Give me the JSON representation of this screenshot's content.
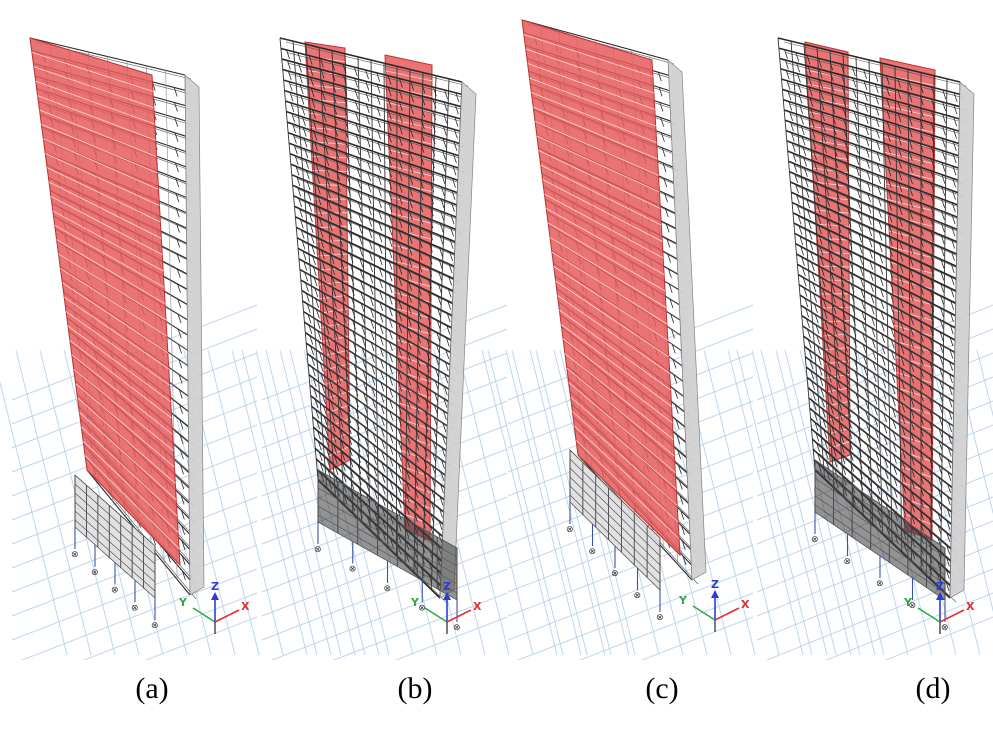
{
  "figure": {
    "panels": [
      {
        "id": "a",
        "label": "(a)",
        "variant": "core_wall"
      },
      {
        "id": "b",
        "label": "(b)",
        "variant": "frame_walls"
      },
      {
        "id": "c",
        "label": "(c)",
        "variant": "core_wall"
      },
      {
        "id": "d",
        "label": "(d)",
        "variant": "frame_walls"
      }
    ],
    "axes_labels": {
      "x": "X",
      "y": "Y",
      "z": "Z"
    },
    "colors": {
      "wall_fill": "#e65a5a",
      "frame": "#2a2a2a",
      "ground_grid": "#a9c8ec",
      "support": "#3a55a8",
      "axis_x": "#e33030",
      "axis_y": "#31a845",
      "axis_z": "#2b3bd6"
    }
  }
}
